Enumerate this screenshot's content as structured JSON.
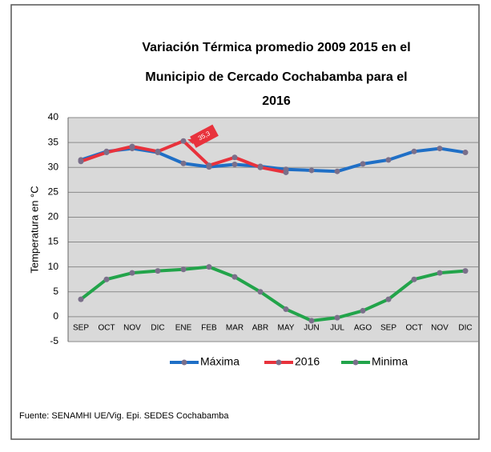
{
  "chart_data": {
    "type": "line",
    "title_lines": [
      "Variación Térmica promedio 2009 2015 en el",
      "Municipio de Cercado Cochabamba para el",
      "2016"
    ],
    "y_label": "Temperatura en °C",
    "source": "Fuente: SENAMHI UE/Vig. Epi.   SEDES Cochabamba",
    "categories": [
      "SEP",
      "OCT",
      "NOV",
      "DIC",
      "ENE",
      "FEB",
      "MAR",
      "ABR",
      "MAY",
      "JUN",
      "JUL",
      "AGO",
      "SEP",
      "OCT",
      "NOV",
      "DIC"
    ],
    "series": [
      {
        "name": "Máxima",
        "color": "#1f6fc6",
        "values": [
          31.5,
          33.2,
          33.8,
          33.0,
          30.8,
          30.1,
          30.6,
          30.2,
          29.6,
          29.4,
          29.2,
          30.7,
          31.5,
          33.2,
          33.8,
          33.0
        ]
      },
      {
        "name": "2016",
        "color": "#e8323c",
        "values": [
          31.2,
          33.0,
          34.2,
          33.2,
          35.3,
          30.4,
          32.0,
          30.0,
          29.0,
          null,
          null,
          null,
          null,
          null,
          null,
          null
        ],
        "value_labels": [
          null,
          null,
          null,
          null,
          "35,3",
          null,
          null,
          null,
          null,
          null,
          null,
          null,
          null,
          null,
          null,
          null
        ]
      },
      {
        "name": "Minima",
        "color": "#22a44a",
        "values": [
          3.5,
          7.5,
          8.8,
          9.2,
          9.5,
          10.0,
          8.0,
          5.0,
          1.5,
          -0.8,
          -0.2,
          1.2,
          3.5,
          7.5,
          8.8,
          9.2
        ]
      }
    ],
    "marker_color": "#7a6f8a",
    "ylim": [
      -5,
      40
    ],
    "yticks": [
      -5,
      0,
      5,
      10,
      15,
      20,
      25,
      30,
      35,
      40
    ],
    "grid": true,
    "legend": "bottom"
  }
}
